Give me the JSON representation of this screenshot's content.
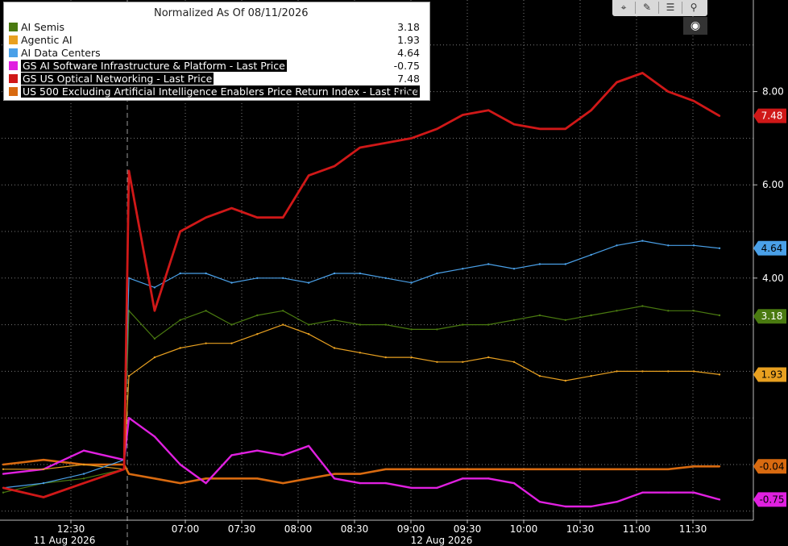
{
  "toolbar": {
    "buttons": [
      {
        "icon": "crosshair-icon",
        "glyph": "⌖"
      },
      {
        "icon": "pencil-icon",
        "glyph": "✎"
      },
      {
        "icon": "list-icon",
        "glyph": "☰"
      },
      {
        "icon": "zoom-icon",
        "glyph": "⚲"
      }
    ],
    "record_glyph": "◉"
  },
  "chart_data": {
    "type": "line",
    "title": "Normalized As Of 08/11/2026",
    "xlabel": "",
    "ylabel": "",
    "ylim": [
      -1.2,
      10.0
    ],
    "y_ticks": [
      4.0,
      6.0,
      8.0
    ],
    "y_tick_labels": [
      "4.00",
      "6.00",
      "8.00"
    ],
    "x_ticks": [
      "12:30",
      "07:00",
      "07:30",
      "08:00",
      "08:30",
      "09:00",
      "09:30",
      "10:00",
      "10:30",
      "11:00",
      "11:30"
    ],
    "date_labels": [
      "11 Aug 2026",
      "12 Aug 2026"
    ],
    "grid": true,
    "legend_placement": "top-left",
    "x": [
      "12:15",
      "12:30",
      "12:45",
      "12:59",
      "06:40",
      "06:45",
      "06:50",
      "06:55",
      "07:00",
      "07:15",
      "07:30",
      "07:45",
      "08:00",
      "08:15",
      "08:30",
      "08:45",
      "09:00",
      "09:15",
      "09:30",
      "09:45",
      "10:00",
      "10:15",
      "10:30",
      "10:45",
      "11:00",
      "11:15",
      "11:30",
      "11:45"
    ],
    "series": [
      {
        "name": "AI Semis",
        "color": "#4a7a10",
        "last": "3.18",
        "values": [
          -0.6,
          -0.4,
          -0.3,
          -0.1,
          3.3,
          2.7,
          3.1,
          3.3,
          3.0,
          3.2,
          3.3,
          3.0,
          3.1,
          3.0,
          3.0,
          2.9,
          2.9,
          3.0,
          3.0,
          3.1,
          3.2,
          3.1,
          3.2,
          3.3,
          3.4,
          3.3,
          3.3,
          3.2
        ]
      },
      {
        "name": "Agentic AI",
        "color": "#e8a020",
        "last": "1.93",
        "values": [
          -0.1,
          -0.1,
          0.0,
          -0.1,
          1.9,
          2.3,
          2.5,
          2.6,
          2.6,
          2.8,
          3.0,
          2.8,
          2.5,
          2.4,
          2.3,
          2.3,
          2.2,
          2.2,
          2.3,
          2.2,
          1.9,
          1.8,
          1.9,
          2.0,
          2.0,
          2.0,
          2.0,
          1.93
        ]
      },
      {
        "name": "AI Data Centers",
        "color": "#4aa0e8",
        "last": "4.64",
        "values": [
          -0.5,
          -0.4,
          -0.2,
          0.1,
          4.0,
          3.8,
          4.1,
          4.1,
          3.9,
          4.0,
          4.0,
          3.9,
          4.1,
          4.1,
          4.0,
          3.9,
          4.1,
          4.2,
          4.3,
          4.2,
          4.3,
          4.3,
          4.5,
          4.7,
          4.8,
          4.7,
          4.7,
          4.64
        ]
      },
      {
        "name": "GS AI Software Infrastructure & Platform - Last Price",
        "color": "#e020e0",
        "last": "-0.75",
        "values": [
          -0.2,
          -0.1,
          0.3,
          0.1,
          1.0,
          0.6,
          0.0,
          -0.4,
          0.2,
          0.3,
          0.2,
          0.4,
          -0.3,
          -0.4,
          -0.4,
          -0.5,
          -0.5,
          -0.3,
          -0.3,
          -0.4,
          -0.8,
          -0.9,
          -0.9,
          -0.8,
          -0.6,
          -0.6,
          -0.6,
          -0.75
        ]
      },
      {
        "name": "GS US Optical Networking - Last Price",
        "color": "#d01818",
        "last": "7.48",
        "values": [
          -0.5,
          -0.7,
          -0.4,
          -0.1,
          6.3,
          3.3,
          5.0,
          5.3,
          5.5,
          5.3,
          5.3,
          6.2,
          6.4,
          6.8,
          6.9,
          7.0,
          7.2,
          7.5,
          7.6,
          7.3,
          7.2,
          7.2,
          7.6,
          8.2,
          8.4,
          8.0,
          7.8,
          7.48
        ]
      },
      {
        "name": "US 500 Excluding Artificial Intelligence Enablers Price Return Index - Last Price",
        "color": "#d86a10",
        "last": "-0.04",
        "values": [
          0.0,
          0.1,
          0.0,
          0.0,
          -0.2,
          -0.3,
          -0.4,
          -0.3,
          -0.3,
          -0.3,
          -0.4,
          -0.3,
          -0.2,
          -0.2,
          -0.1,
          -0.1,
          -0.1,
          -0.1,
          -0.1,
          -0.1,
          -0.1,
          -0.1,
          -0.1,
          -0.1,
          -0.1,
          -0.1,
          -0.04,
          -0.04
        ]
      }
    ]
  }
}
